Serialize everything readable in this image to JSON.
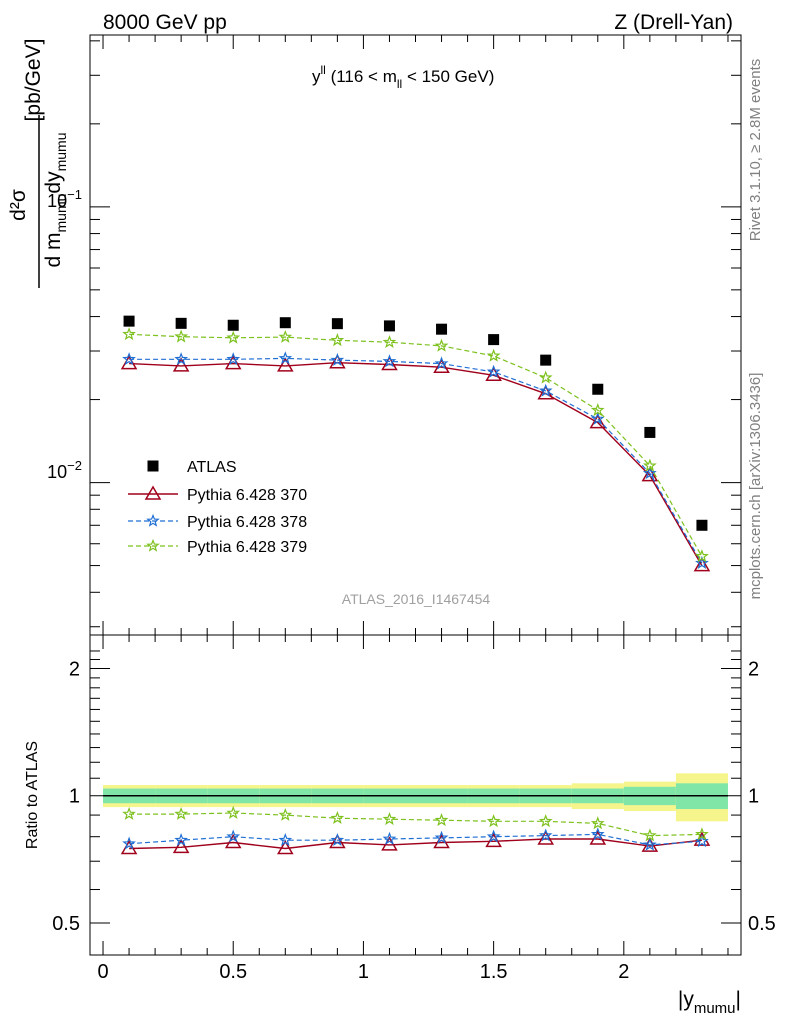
{
  "header": {
    "left": "8000 GeV pp",
    "right": "Z (Drell-Yan)"
  },
  "side": {
    "rivet": "Rivet 3.1.10, ≥ 2.8M events",
    "mcplots": "mcplots.cern.ch [arXiv:1306.3436]"
  },
  "analysis_id": "ATLAS_2016_I1467454",
  "chart_data": [
    {
      "type": "scatter",
      "panel": "main",
      "title": {
        "base": "y",
        "sup": "ll",
        "mid": " (116 < m",
        "sub": "ll",
        "tail": " < 150 GeV)"
      },
      "ylabel": {
        "d2sigma": "d²σ",
        "den_d": "d m",
        "den_sub1": "mumu",
        "den_dy": "dy",
        "den_sub2": "mumu",
        "unit": "[pb/GeV]"
      },
      "yscale": "log",
      "ylim": [
        0.0028,
        0.42
      ],
      "xlim": [
        -0.05,
        2.45
      ],
      "ytick_labels": [
        {
          "value": 0.1,
          "base": "10",
          "exp": "−1"
        },
        {
          "value": 0.01,
          "base": "10",
          "exp": "−2"
        }
      ],
      "legend_position": "middle-left",
      "x": [
        0.1,
        0.3,
        0.5,
        0.7,
        0.9,
        1.1,
        1.3,
        1.5,
        1.7,
        1.9,
        2.1,
        2.3
      ],
      "series": [
        {
          "name": "ATLAS",
          "color": "#000000",
          "marker": "square",
          "line": "none",
          "values": [
            0.0385,
            0.0378,
            0.0372,
            0.038,
            0.0377,
            0.037,
            0.036,
            0.033,
            0.0278,
            0.0218,
            0.0152,
            0.007
          ]
        },
        {
          "name": "Pythia 6.428 370",
          "color": "#a0001c",
          "marker": "triangle-open",
          "line": "solid",
          "values": [
            0.027,
            0.0265,
            0.027,
            0.0265,
            0.0272,
            0.0268,
            0.0262,
            0.0245,
            0.021,
            0.0165,
            0.0106,
            0.005
          ]
        },
        {
          "name": "Pythia 6.428 378",
          "color": "#1f6fd4",
          "marker": "star",
          "line": "dashed",
          "values": [
            0.028,
            0.028,
            0.028,
            0.0282,
            0.0278,
            0.0275,
            0.027,
            0.0252,
            0.0215,
            0.017,
            0.0108,
            0.0051
          ]
        },
        {
          "name": "Pythia 6.428 379",
          "color": "#7dc11e",
          "marker": "star",
          "line": "dashed",
          "values": [
            0.0345,
            0.0338,
            0.0335,
            0.0337,
            0.0328,
            0.0323,
            0.0313,
            0.0288,
            0.024,
            0.0183,
            0.0115,
            0.0054
          ]
        }
      ]
    },
    {
      "type": "line",
      "panel": "ratio",
      "ylabel": "Ratio to ATLAS",
      "xlabel": {
        "base": "|y",
        "sub": "mumu",
        "tail": "|"
      },
      "yscale": "log",
      "ylim": [
        0.42,
        2.4
      ],
      "yticks": [
        0.5,
        1,
        2
      ],
      "ytick_labels": [
        "0.5",
        "1",
        "2"
      ],
      "xticks": [
        0,
        0.5,
        1,
        1.5,
        2
      ],
      "xtick_labels": [
        "0",
        "0.5",
        "1",
        "1.5",
        "2"
      ],
      "band_edges": [
        0,
        0.2,
        0.4,
        0.6,
        0.8,
        1.0,
        1.2,
        1.4,
        1.6,
        1.8,
        2.0,
        2.2,
        2.4
      ],
      "band_inner": [
        0.04,
        0.04,
        0.04,
        0.04,
        0.04,
        0.04,
        0.04,
        0.04,
        0.04,
        0.04,
        0.05,
        0.07
      ],
      "band_outer": [
        0.06,
        0.06,
        0.06,
        0.06,
        0.06,
        0.06,
        0.06,
        0.06,
        0.06,
        0.07,
        0.08,
        0.13
      ],
      "series": [
        {
          "name": "Pythia 6.428 370",
          "color": "#a0001c",
          "marker": "triangle-open",
          "line": "solid",
          "values": [
            0.75,
            0.755,
            0.775,
            0.75,
            0.775,
            0.765,
            0.775,
            0.78,
            0.79,
            0.79,
            0.76,
            0.785
          ]
        },
        {
          "name": "Pythia 6.428 378",
          "color": "#1f6fd4",
          "marker": "star",
          "line": "dashed",
          "values": [
            0.77,
            0.785,
            0.8,
            0.785,
            0.785,
            0.79,
            0.795,
            0.8,
            0.805,
            0.81,
            0.765,
            0.78
          ]
        },
        {
          "name": "Pythia 6.428 379",
          "color": "#7dc11e",
          "marker": "star",
          "line": "dashed",
          "values": [
            0.905,
            0.905,
            0.91,
            0.9,
            0.885,
            0.88,
            0.875,
            0.87,
            0.87,
            0.86,
            0.805,
            0.81
          ]
        }
      ]
    }
  ]
}
